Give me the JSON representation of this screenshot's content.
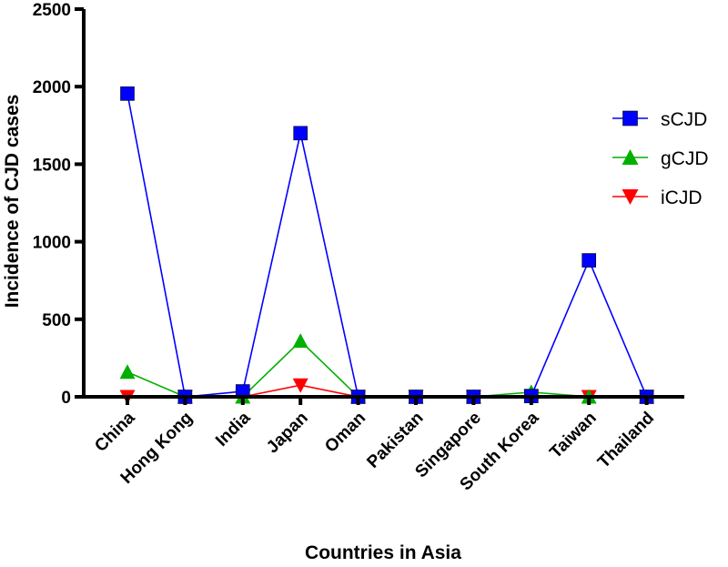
{
  "chart_data": {
    "type": "line",
    "title": "",
    "xlabel": "Countries in Asia",
    "ylabel": "Incidence of CJD cases",
    "categories": [
      "China",
      "Hong Kong",
      "India",
      "Japan",
      "Oman",
      "Pakistan",
      "Singapore",
      "South Korea",
      "Taiwan",
      "Thailand"
    ],
    "ylim": [
      0,
      2500
    ],
    "yticks": [
      0,
      500,
      1000,
      1500,
      2000,
      2500
    ],
    "grid": false,
    "legend_position": "right",
    "series": [
      {
        "name": "sCJD",
        "marker": "square",
        "color": "#0000ff",
        "values": [
          1955,
          0,
          35,
          1700,
          0,
          0,
          0,
          5,
          880,
          0
        ]
      },
      {
        "name": "gCJD",
        "marker": "triangle-up",
        "color": "#00b000",
        "values": [
          160,
          0,
          0,
          360,
          0,
          0,
          0,
          30,
          0,
          0
        ]
      },
      {
        "name": "iCJD",
        "marker": "triangle-down",
        "color": "#ff0000",
        "values": [
          0,
          0,
          0,
          75,
          0,
          0,
          0,
          0,
          0,
          0
        ]
      }
    ]
  }
}
